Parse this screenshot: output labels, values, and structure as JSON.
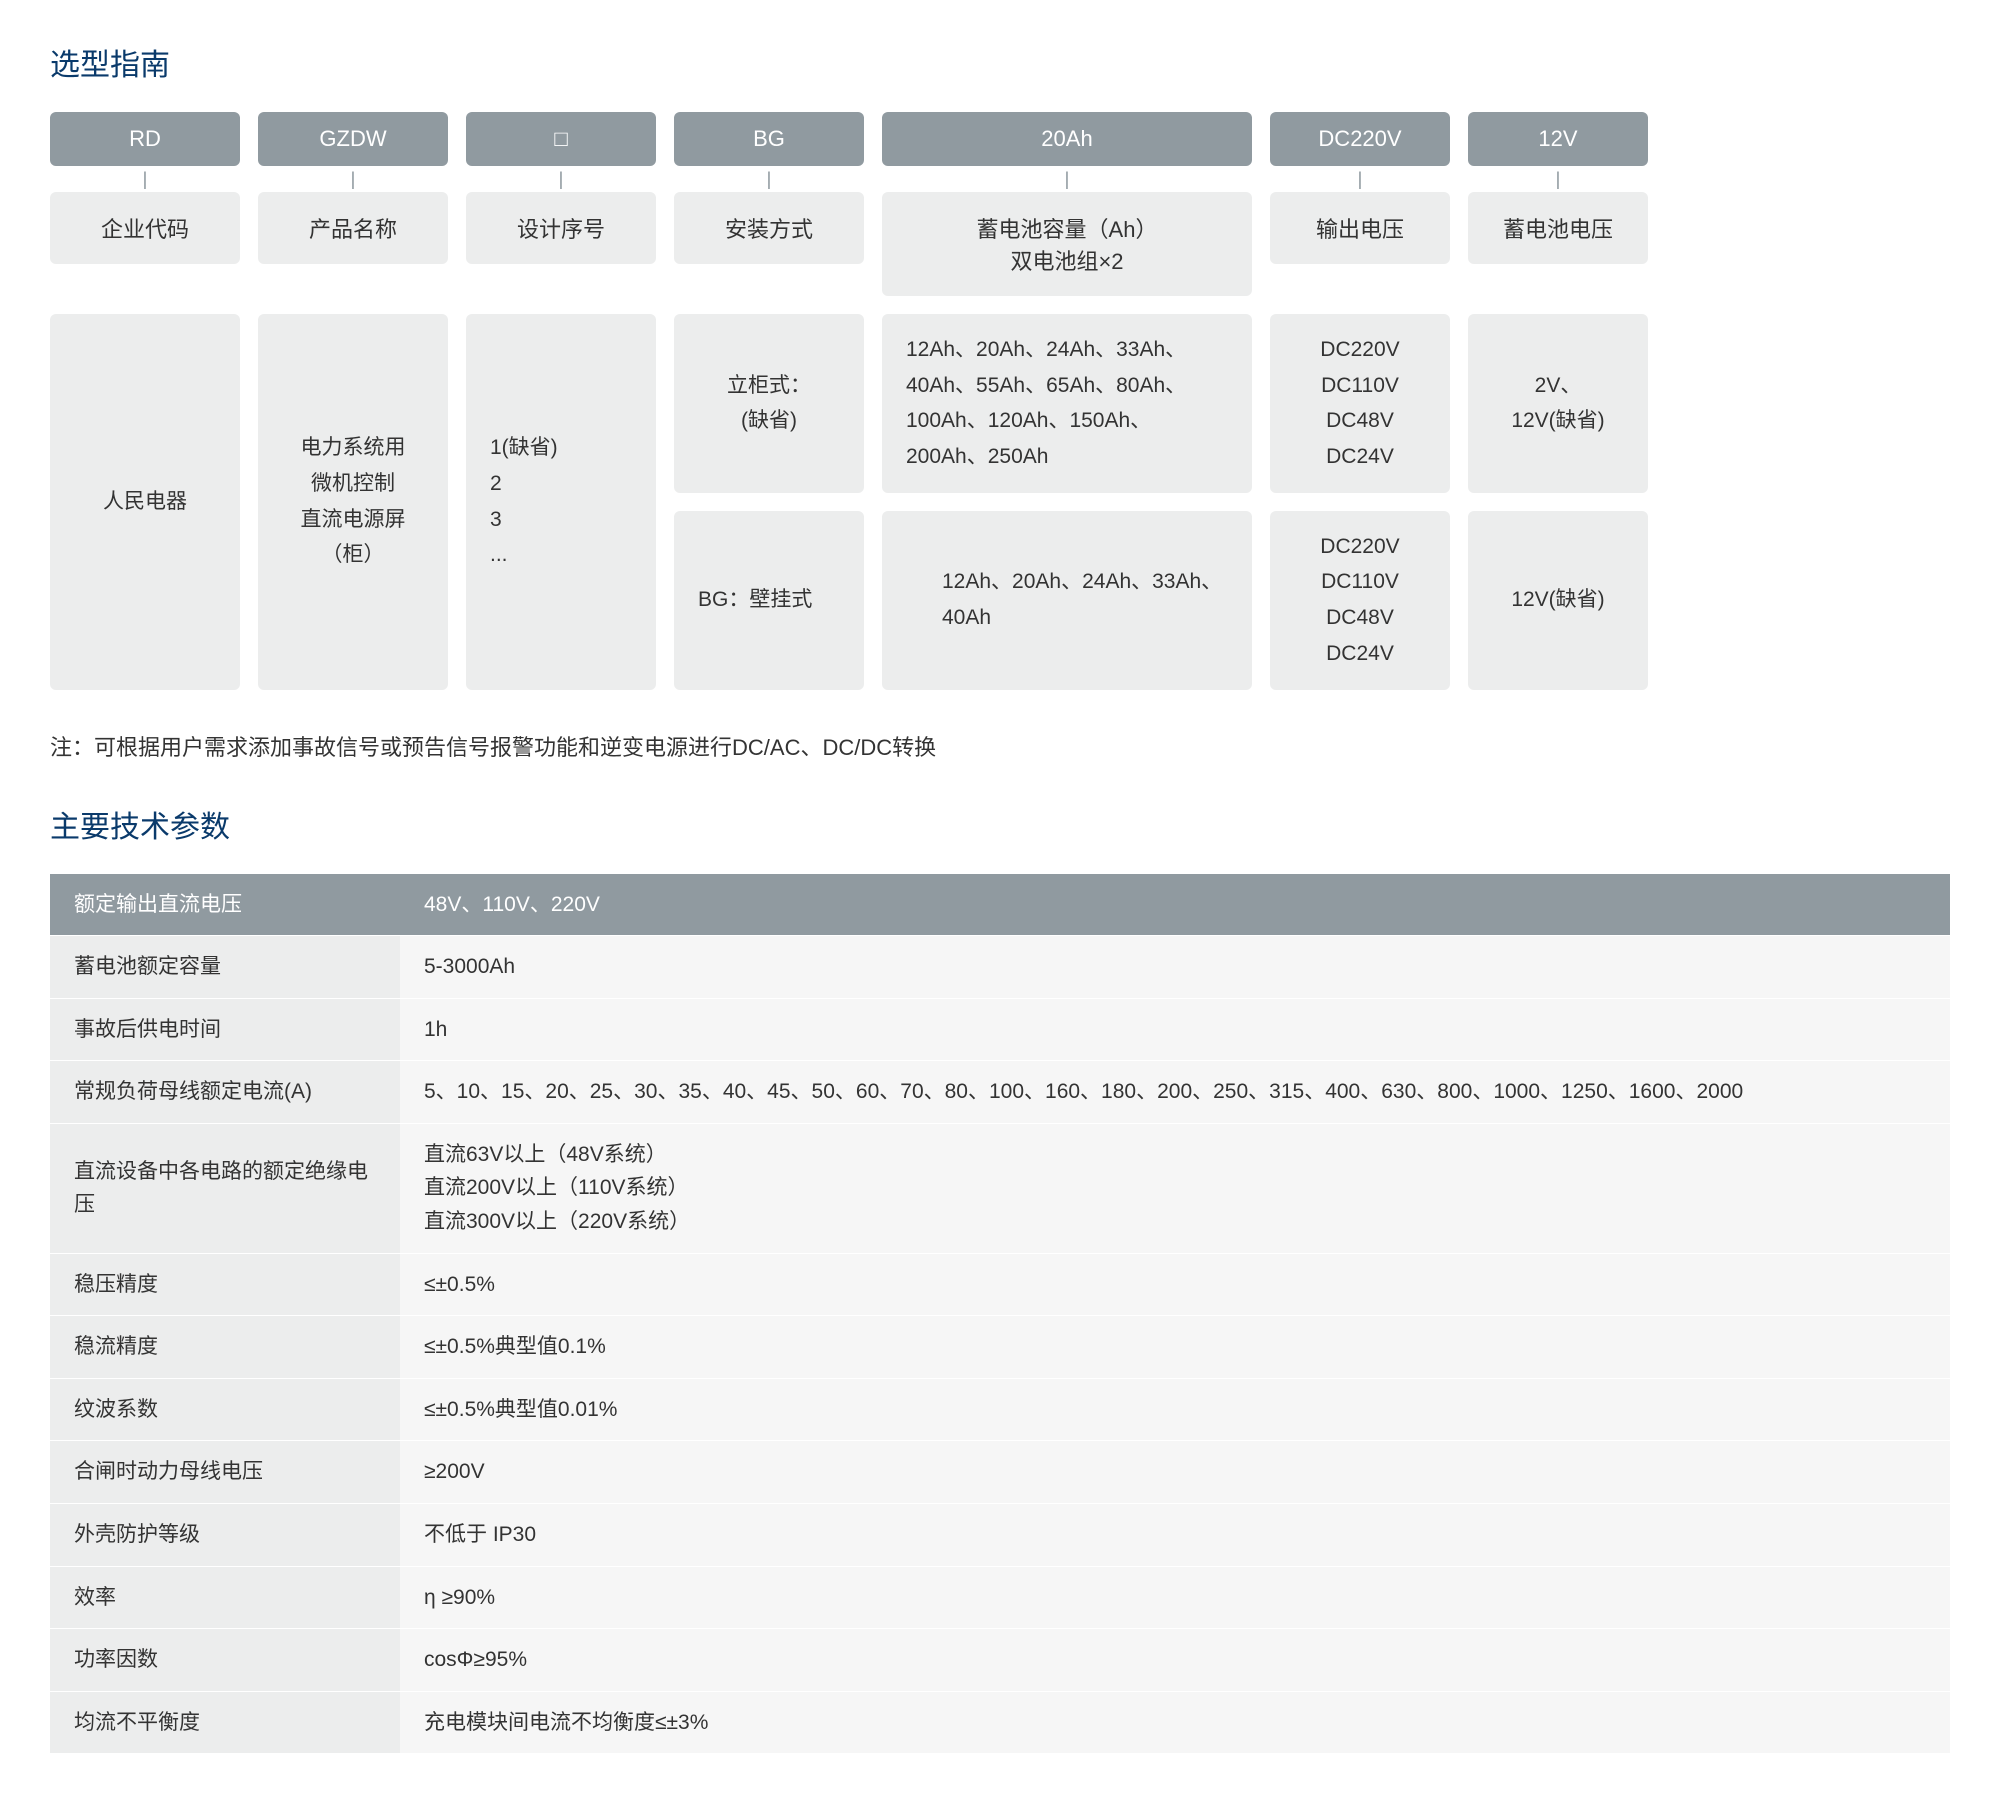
{
  "colors": {
    "title": "#0a3a6b",
    "header_bg": "#909aa0",
    "header_text": "#ffffff",
    "cell_bg": "#eceded",
    "value_bg": "#f6f6f6",
    "text": "#333333",
    "connector": "#8a949b"
  },
  "section1": {
    "title": "选型指南",
    "columns": [
      {
        "code": "RD",
        "label": "企业代码",
        "value": "人民电器"
      },
      {
        "code": "GZDW",
        "label": "产品名称",
        "value": "电力系统用\n微机控制\n直流电源屏（柜）"
      },
      {
        "code": "□",
        "label": "设计序号",
        "value": "1(缺省)\n2\n3\n..."
      },
      {
        "code": "BG",
        "label": "安装方式",
        "value1": "立柜式：\n(缺省)",
        "value2": "BG：壁挂式"
      },
      {
        "code": "20Ah",
        "label": "蓄电池容量（Ah）\n双电池组×2",
        "value1": "12Ah、20Ah、24Ah、33Ah、40Ah、55Ah、65Ah、80Ah、100Ah、120Ah、150Ah、200Ah、250Ah",
        "value2": "12Ah、20Ah、24Ah、33Ah、40Ah"
      },
      {
        "code": "DC220V",
        "label": "输出电压",
        "value1": "DC220V\nDC110V\nDC48V\nDC24V",
        "value2": "DC220V\nDC110V\nDC48V\nDC24V"
      },
      {
        "code": "12V",
        "label": "蓄电池电压",
        "value1": "2V、\n12V(缺省)",
        "value2": "12V(缺省)"
      }
    ],
    "note": "注：可根据用户需求添加事故信号或预告信号报警功能和逆变电源进行DC/AC、DC/DC转换"
  },
  "section2": {
    "title": "主要技术参数",
    "header": {
      "label": "额定输出直流电压",
      "value": "48V、110V、220V"
    },
    "rows": [
      {
        "label": "蓄电池额定容量",
        "value": "5-3000Ah"
      },
      {
        "label": "事故后供电时间",
        "value": "1h"
      },
      {
        "label": "常规负荷母线额定电流(A)",
        "value": "5、10、15、20、25、30、35、40、45、50、60、70、80、100、160、180、200、250、315、400、630、800、1000、1250、1600、2000"
      },
      {
        "label": "直流设备中各电路的额定绝缘电压",
        "value": "直流63V以上（48V系统）\n直流200V以上（110V系统）\n直流300V以上（220V系统）"
      },
      {
        "label": "稳压精度",
        "value": "≤±0.5%"
      },
      {
        "label": "稳流精度",
        "value": "≤±0.5%典型值0.1%"
      },
      {
        "label": "纹波系数",
        "value": "≤±0.5%典型值0.01%"
      },
      {
        "label": "合闸时动力母线电压",
        "value": "≥200V"
      },
      {
        "label": "外壳防护等级",
        "value": "不低于 IP30"
      },
      {
        "label": "效率",
        "value": "η ≥90%"
      },
      {
        "label": "功率因数",
        "value": "cosΦ≥95%"
      },
      {
        "label": "均流不平衡度",
        "value": "充电模块间电流不均衡度≤±3%"
      }
    ]
  }
}
